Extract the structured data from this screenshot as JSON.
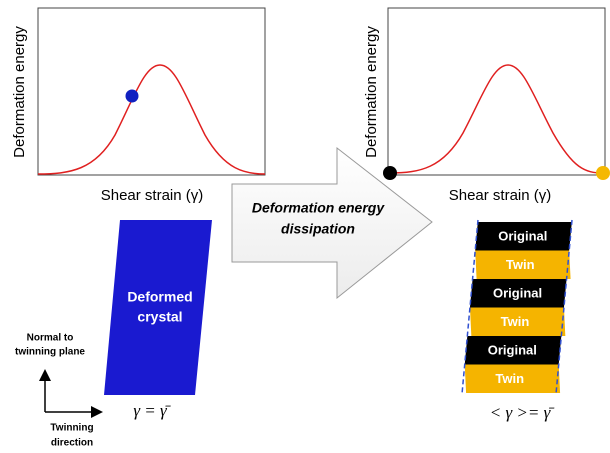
{
  "left_plot": {
    "y_label": "Deformation energy",
    "x_label": "Shear strain (γ)"
  },
  "right_plot": {
    "y_label": "Deformation energy",
    "x_label": "Shear strain (γ)"
  },
  "arrow": {
    "lines": [
      "Deformation energy",
      "dissipation"
    ]
  },
  "crystal": {
    "lines": [
      "Deformed",
      "crystal"
    ],
    "formula": "γ = γ̄"
  },
  "axes_key": {
    "normal": [
      "Normal to",
      "twinning plane"
    ],
    "direction": [
      "Twinning",
      "direction"
    ]
  },
  "stack": {
    "layers": [
      "Original",
      "Twin",
      "Original",
      "Twin",
      "Original",
      "Twin"
    ],
    "formula": "< γ >= γ̄"
  }
}
